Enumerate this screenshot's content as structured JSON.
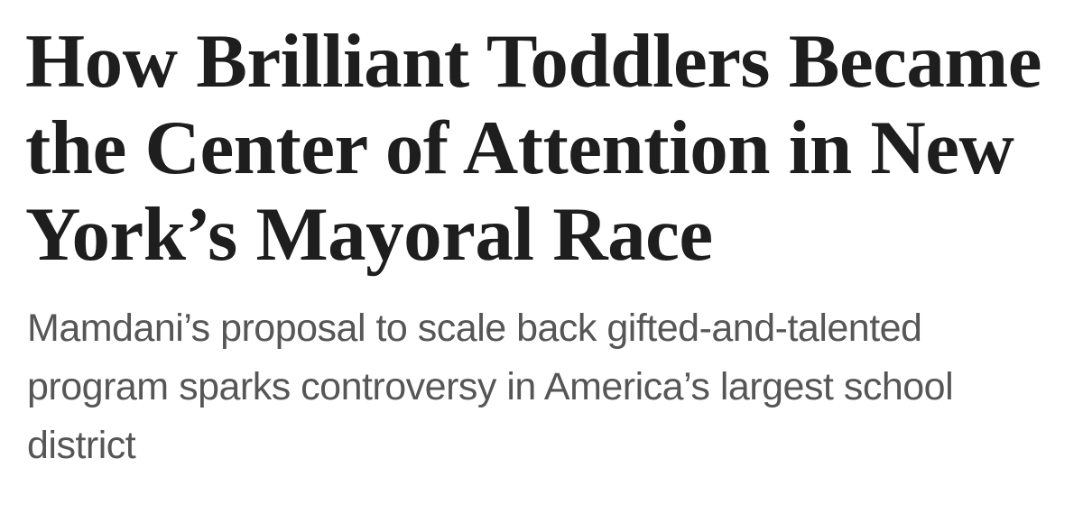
{
  "page": {
    "background": "#ffffff"
  },
  "article": {
    "headline": {
      "full_text": "How Brilliant Toddlers Became the Center of Attention in New York’s Mayoral Race",
      "lines": [
        "How Brilliant Toddlers Became",
        "the Center of Attention in New",
        "York’s Mayoral Race"
      ],
      "color": "#1e1e1e"
    },
    "dek": {
      "full_text": "Mamdani’s proposal to scale back gifted-and-talented program sparks controversy in America’s largest school district",
      "lines": [
        "Mamdani’s proposal to scale back gifted-and-talented",
        "program sparks controversy in America’s largest school",
        "district"
      ],
      "color": "#565656"
    }
  }
}
